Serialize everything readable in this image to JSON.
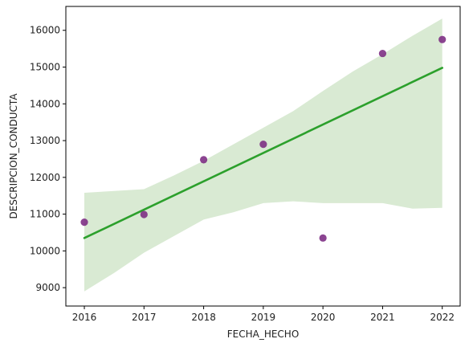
{
  "chart_data": {
    "type": "scatter",
    "xlabel": "FECHA_HECHO",
    "ylabel": "DESCRIPCION_CONDUCTA",
    "xlim": [
      2015.69,
      2022.3
    ],
    "ylim": [
      8500,
      16650
    ],
    "xticks": [
      2016,
      2017,
      2018,
      2019,
      2020,
      2021,
      2022
    ],
    "yticks": [
      9000,
      10000,
      11000,
      12000,
      13000,
      14000,
      15000,
      16000
    ],
    "grid": false,
    "legend": "none",
    "points": {
      "x": [
        2016,
        2017,
        2018,
        2019,
        2020,
        2021,
        2022
      ],
      "y": [
        10780,
        10990,
        12480,
        12900,
        10350,
        15370,
        15750
      ]
    },
    "regression": {
      "x": [
        2016,
        2022
      ],
      "y": [
        10350,
        14980
      ]
    },
    "confidence_band": {
      "x": [
        2016,
        2016.5,
        2017,
        2017.5,
        2018,
        2018.5,
        2019,
        2019.5,
        2020,
        2020.5,
        2021,
        2021.5,
        2022
      ],
      "lower": [
        8900,
        9400,
        9950,
        10400,
        10850,
        11050,
        11300,
        11350,
        11300,
        11300,
        11300,
        11150,
        11170
      ],
      "upper": [
        11580,
        11630,
        11680,
        12050,
        12450,
        12900,
        13350,
        13800,
        14350,
        14880,
        15350,
        15850,
        16320
      ]
    },
    "colors": {
      "points": "#7b2a82",
      "line": "#2ca02c",
      "band": "#d9ead3",
      "axis": "#000000"
    }
  }
}
